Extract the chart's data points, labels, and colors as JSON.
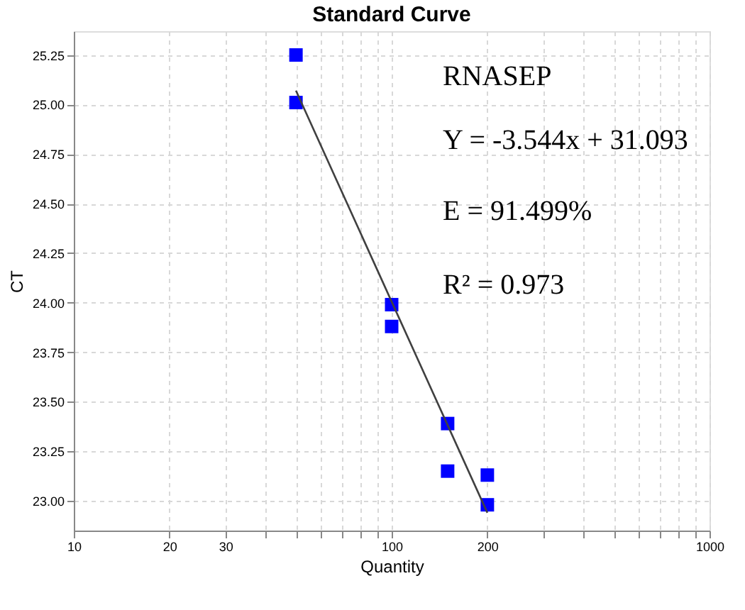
{
  "chart_data": {
    "type": "scatter",
    "title": "Standard Curve",
    "xlabel": "Quantity",
    "ylabel": "CT",
    "log": "x",
    "grid": true,
    "xlim": [
      10,
      1000
    ],
    "xticks": [
      10,
      20,
      30,
      {
        "value": 40,
        "label": null
      },
      {
        "value": 50,
        "label": null
      },
      {
        "value": 60,
        "label": null
      },
      {
        "value": 70,
        "label": null
      },
      {
        "value": 80,
        "label": null
      },
      {
        "value": 90,
        "label": null
      },
      100,
      200,
      {
        "value": 300,
        "label": null
      },
      {
        "value": 400,
        "label": null
      },
      {
        "value": 500,
        "label": null
      },
      {
        "value": 600,
        "label": null
      },
      {
        "value": 700,
        "label": null
      },
      {
        "value": 800,
        "label": null
      },
      {
        "value": 900,
        "label": null
      },
      {
        "value": 1000,
        "label": "1000"
      }
    ],
    "ylim": [
      22.85,
      25.37
    ],
    "yticks": [
      {
        "value": 23,
        "label": "23.00"
      },
      23.25,
      {
        "value": 23.5,
        "label": "23.50"
      },
      23.75,
      {
        "value": 24,
        "label": "24.00"
      },
      24.25,
      {
        "value": 24.5,
        "label": "24.50"
      },
      24.75,
      {
        "value": 25,
        "label": "25.00"
      },
      25.25
    ],
    "series": [
      {
        "marker": "square",
        "color": "#0000ff",
        "x": [
          50,
          50,
          100,
          100,
          150,
          150,
          200,
          200
        ],
        "values": [
          25.25,
          25.01,
          23.99,
          23.88,
          23.39,
          23.15,
          23.13,
          22.98
        ]
      },
      {
        "type": "line",
        "line_style": "solid",
        "color": "#404040",
        "x": [
          50,
          200
        ],
        "values": [
          25.07,
          22.94
        ]
      }
    ],
    "annotations": [
      "RNASEP",
      "Y = -3.544x + 31.093",
      "E = 91.499%",
      "R² = 0.973"
    ]
  }
}
